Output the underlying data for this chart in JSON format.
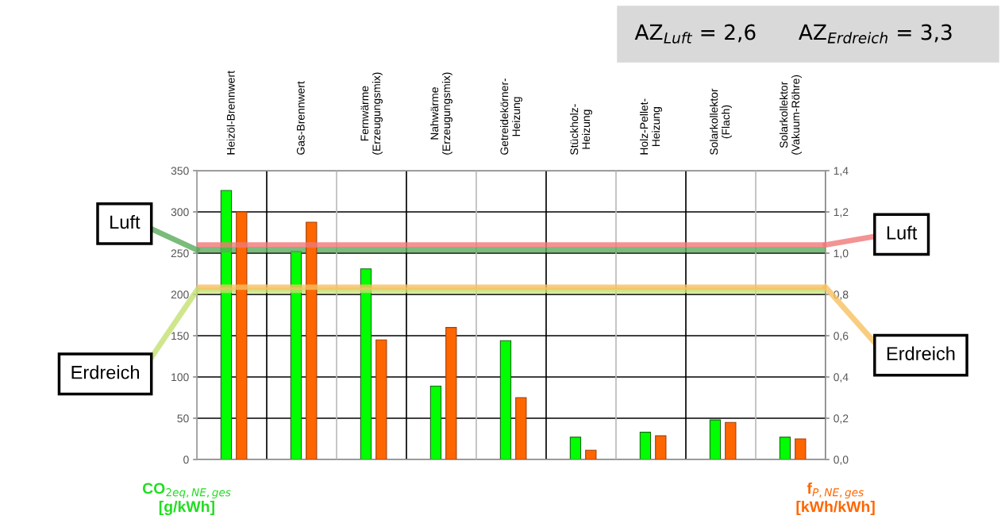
{
  "chart_data": {
    "type": "bar",
    "categories": [
      "Heizöl-Brennwert",
      "Gas-Brennwert",
      "Fernwärme\n(Erzeugungsmix)",
      "Nahwärme\n(Erzeugungsmix)",
      "Getreidekörner-\nHeizung",
      "Stückholz-\nHeizung",
      "Holz-Pellet-\nHeizung",
      "Solarkollektor\n(Flach)",
      "Solarkollektor\n(Vakuum-Röhre)"
    ],
    "series": [
      {
        "color": "#00ff00",
        "values": [
          326,
          252,
          231,
          89,
          144,
          27,
          33,
          48,
          27
        ]
      },
      {
        "color": "#ff6600",
        "axis": "y2",
        "values": [
          1.2,
          1.15,
          0.58,
          0.64,
          0.3,
          0.045,
          0.115,
          0.18,
          0.1
        ]
      }
    ],
    "ylabel": "CO$_{2eq,NE,ges}$\n[g/kWh]",
    "y2label": "f$_{P,NE,ges}$\n[kWh/kWh]",
    "ylim": [
      0,
      350
    ],
    "yticks": [
      0,
      50,
      100,
      150,
      200,
      250,
      300,
      350
    ],
    "y2lim": [
      0,
      1.4
    ],
    "y2ticks": [
      {
        "value": 0,
        "label": "0,0"
      },
      {
        "value": 0.2,
        "label": "0,2"
      },
      {
        "value": 0.4,
        "label": "0,4"
      },
      {
        "value": 0.6,
        "label": "0,6"
      },
      {
        "value": 0.8,
        "label": "0,8"
      },
      {
        "value": 1.0,
        "label": "1,0"
      },
      {
        "value": 1.2,
        "label": "1,2"
      },
      {
        "value": 1.4,
        "label": "1,4"
      }
    ],
    "ref_lines": [
      {
        "axis": "y",
        "value": 254,
        "label": "Luft",
        "color": "#5aaa5a"
      },
      {
        "axis": "y",
        "value": 205,
        "label": "Erdreich",
        "color": "#c4e070"
      },
      {
        "axis": "y2",
        "value": 1.04,
        "label": "Luft",
        "color": "#f07878"
      },
      {
        "axis": "y2",
        "value": 0.835,
        "label": "Erdreich",
        "color": "#f8c060"
      }
    ],
    "annotations": [
      "AZ$_{Luft}$ = 2,6",
      "AZ$_{Erdreich}$ = 3,3"
    ],
    "grid": true
  }
}
